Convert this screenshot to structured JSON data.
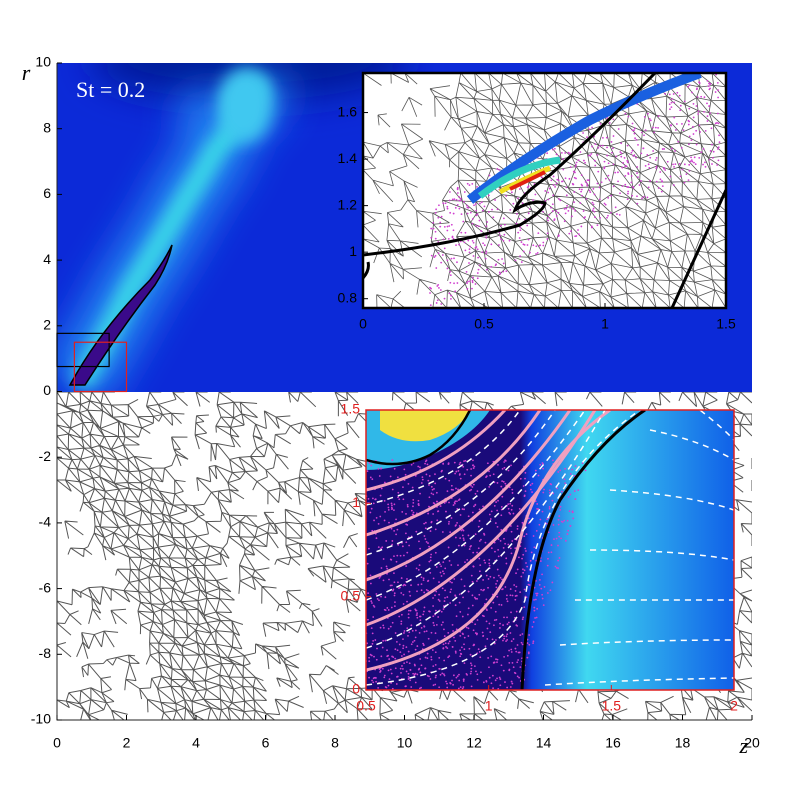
{
  "chart_data": [
    {
      "type": "field",
      "annotation": "St = 0.2",
      "x_label": "z",
      "y_label": "r",
      "xlim": [
        0,
        20
      ],
      "xticks": [
        0,
        2,
        4,
        6,
        8,
        10,
        12,
        14,
        16,
        18,
        20
      ],
      "ylim": [
        -10,
        10
      ],
      "yticks": [
        -10,
        -8,
        -6,
        -4,
        -2,
        0,
        2,
        4,
        6,
        8,
        10
      ]
    },
    {
      "type": "field",
      "box_color": "#000000",
      "xlim": [
        0,
        1.5
      ],
      "xticks": [
        0,
        0.5,
        1,
        1.5
      ],
      "ylim": [
        0.76,
        1.77
      ],
      "yticks": [
        0.8,
        1,
        1.2,
        1.4,
        1.6
      ]
    },
    {
      "type": "field",
      "box_color": "#e02020",
      "xlim": [
        0.5,
        2
      ],
      "xticks": [
        0.5,
        1,
        1.5,
        2
      ],
      "ylim": [
        0,
        1.5
      ],
      "yticks": [
        0,
        0.5,
        1,
        1.5
      ]
    }
  ]
}
